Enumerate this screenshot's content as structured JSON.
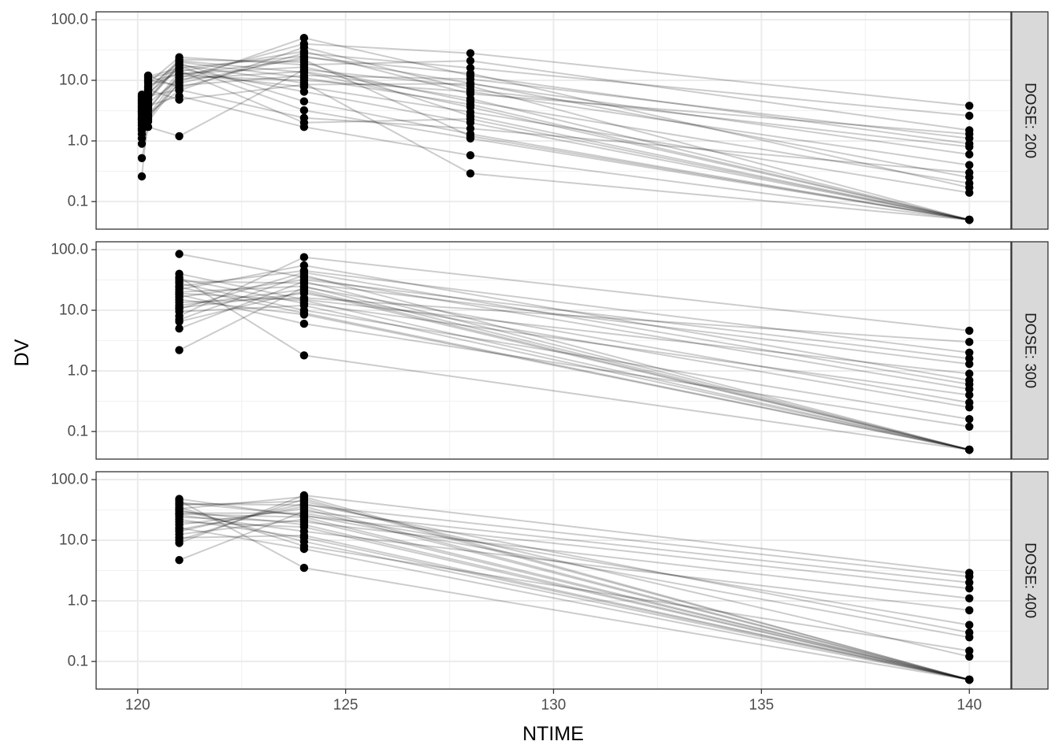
{
  "chart_data": {
    "type": "line",
    "xlabel": "NTIME",
    "ylabel": "DV",
    "x_ticks": [
      120,
      125,
      130,
      135,
      140
    ],
    "x_tick_labels": [
      "120",
      "125",
      "130",
      "135",
      "140"
    ],
    "xlim": [
      119.0,
      141.0
    ],
    "y_scale": "log10",
    "y_ticks": [
      0.1,
      1,
      10,
      100
    ],
    "y_tick_labels": [
      "0.1",
      "1.0",
      "10.0",
      "100.0"
    ],
    "ylim": [
      0.035,
      135
    ],
    "grid": true,
    "facet_labels": [
      "DOSE: 200",
      "DOSE: 300",
      "DOSE: 400"
    ],
    "colors": {
      "point": "#000000",
      "line": "#000000",
      "line_opacity": 0.2,
      "grid": "#ebebeb",
      "strip": "#d9d9d9"
    },
    "panels": [
      {
        "facet": "DOSE: 200",
        "x": [
          120.1,
          120.25,
          121,
          124,
          128,
          140
        ],
        "subjects": [
          [
            0.26,
            2.6,
            12.5,
            22.0,
            1.2,
            0.05
          ],
          [
            0.52,
            1.7,
            1.2,
            15.0,
            8.0,
            0.05
          ],
          [
            0.9,
            2.3,
            11.0,
            40.0,
            28.0,
            3.8
          ],
          [
            1.1,
            4.8,
            18.0,
            9.0,
            0.29,
            0.05
          ],
          [
            1.3,
            5.5,
            7.0,
            2.4,
            1.6,
            0.3
          ],
          [
            1.5,
            3.2,
            14.0,
            30.0,
            6.0,
            1.3
          ],
          [
            1.6,
            7.5,
            20.0,
            11.0,
            4.0,
            0.05
          ],
          [
            1.8,
            2.1,
            9.5,
            50.0,
            12.0,
            0.9
          ],
          [
            2.0,
            6.2,
            15.5,
            6.5,
            2.0,
            0.05
          ],
          [
            2.2,
            9.0,
            24.0,
            18.0,
            21.0,
            1.5
          ],
          [
            2.4,
            3.8,
            5.5,
            1.7,
            0.58,
            0.05
          ],
          [
            2.6,
            11.5,
            16.0,
            25.0,
            9.0,
            0.25
          ],
          [
            2.8,
            4.2,
            10.5,
            14.0,
            5.0,
            0.05
          ],
          [
            3.0,
            8.0,
            13.0,
            7.8,
            3.0,
            0.14
          ],
          [
            3.2,
            2.8,
            6.8,
            35.0,
            7.0,
            0.8
          ],
          [
            3.4,
            5.0,
            19.0,
            4.5,
            1.3,
            0.05
          ],
          [
            3.6,
            10.0,
            8.2,
            12.0,
            10.5,
            1.1
          ],
          [
            3.8,
            6.8,
            22.0,
            20.0,
            2.6,
            0.05
          ],
          [
            4.1,
            3.5,
            11.8,
            10.0,
            6.5,
            0.4
          ],
          [
            4.4,
            12.0,
            7.5,
            28.0,
            16.0,
            2.6
          ],
          [
            4.7,
            4.6,
            17.5,
            3.2,
            1.1,
            0.05
          ],
          [
            5.0,
            9.5,
            12.8,
            16.5,
            4.5,
            0.2
          ],
          [
            5.4,
            7.0,
            4.8,
            8.5,
            8.8,
            0.6
          ],
          [
            5.8,
            5.8,
            21.0,
            13.5,
            3.6,
            0.05
          ],
          [
            3.1,
            2.5,
            9.0,
            24.0,
            13.0,
            0.17
          ],
          [
            2.3,
            10.8,
            14.5,
            2.0,
            2.3,
            0.05
          ]
        ]
      },
      {
        "facet": "DOSE: 300",
        "x": [
          121,
          124,
          140
        ],
        "subjects": [
          [
            85.0,
            35.0,
            0.5
          ],
          [
            2.2,
            24.0,
            0.3
          ],
          [
            35.0,
            1.8,
            0.05
          ],
          [
            8.0,
            75.0,
            4.6
          ],
          [
            12.0,
            22.0,
            0.05
          ],
          [
            40.0,
            15.0,
            0.9
          ],
          [
            5.0,
            30.0,
            0.05
          ],
          [
            18.0,
            6.0,
            0.12
          ],
          [
            25.0,
            45.0,
            2.0
          ],
          [
            9.5,
            12.0,
            0.05
          ],
          [
            30.0,
            28.0,
            1.3
          ],
          [
            15.0,
            8.5,
            0.05
          ],
          [
            22.0,
            55.0,
            0.7
          ],
          [
            11.0,
            19.0,
            0.25
          ],
          [
            7.0,
            38.0,
            0.05
          ],
          [
            28.0,
            10.0,
            0.16
          ],
          [
            13.5,
            16.0,
            3.0
          ],
          [
            20.0,
            25.0,
            0.05
          ],
          [
            33.0,
            13.0,
            0.4
          ],
          [
            6.5,
            20.5,
            0.05
          ],
          [
            16.5,
            32.0,
            1.6
          ],
          [
            24.0,
            9.0,
            0.05
          ],
          [
            10.5,
            42.0,
            0.6
          ],
          [
            19.0,
            14.5,
            0.05
          ]
        ]
      },
      {
        "facet": "DOSE: 400",
        "x": [
          121,
          124,
          140
        ],
        "subjects": [
          [
            4.7,
            30.0,
            2.0
          ],
          [
            45.0,
            3.5,
            0.05
          ],
          [
            9.0,
            55.0,
            2.9
          ],
          [
            30.0,
            18.0,
            0.05
          ],
          [
            14.0,
            40.0,
            0.3
          ],
          [
            22.0,
            11.0,
            0.05
          ],
          [
            48.0,
            25.0,
            1.6
          ],
          [
            10.0,
            48.0,
            0.05
          ],
          [
            35.0,
            8.0,
            0.15
          ],
          [
            18.0,
            33.0,
            0.05
          ],
          [
            26.0,
            14.0,
            0.7
          ],
          [
            12.5,
            22.0,
            0.05
          ],
          [
            40.0,
            38.0,
            2.5
          ],
          [
            16.0,
            7.2,
            0.05
          ],
          [
            28.0,
            28.0,
            0.4
          ],
          [
            20.0,
            16.5,
            0.05
          ],
          [
            38.0,
            44.0,
            0.12
          ],
          [
            11.0,
            12.0,
            0.05
          ],
          [
            24.0,
            20.0,
            1.1
          ],
          [
            32.0,
            9.5,
            0.05
          ],
          [
            42.0,
            26.0,
            0.25
          ],
          [
            15.0,
            36.0,
            0.05
          ],
          [
            33.0,
            52.0,
            0.05
          ],
          [
            27.0,
            24.0,
            0.05
          ]
        ]
      }
    ]
  }
}
